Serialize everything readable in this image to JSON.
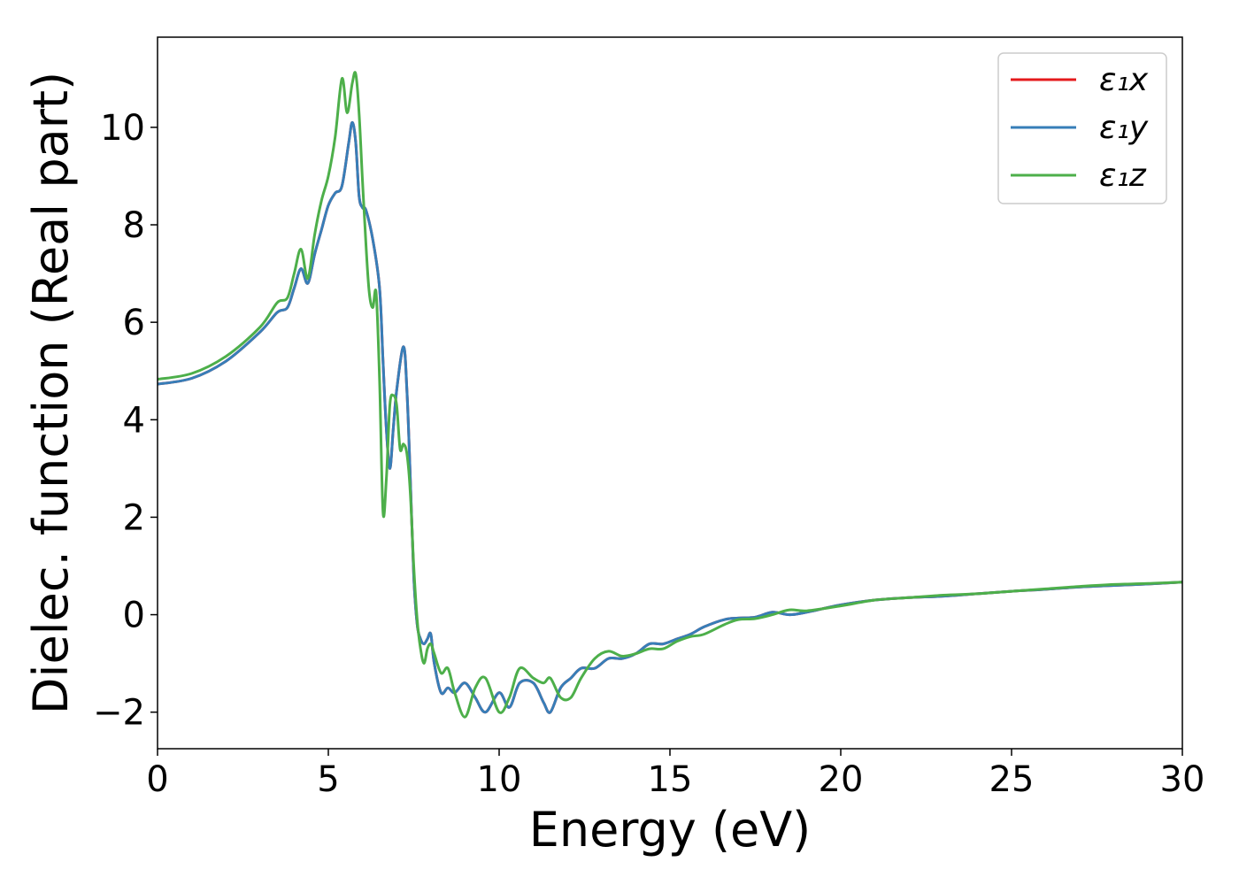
{
  "chart_data": {
    "type": "line",
    "title": "",
    "xlabel": "Energy (eV)",
    "ylabel": "Dielec. function (Real part)",
    "xlim": [
      0,
      30
    ],
    "ylim": [
      -2.75,
      11.85
    ],
    "xticks": [
      0,
      5,
      10,
      15,
      20,
      25,
      30
    ],
    "yticks": [
      -2,
      0,
      2,
      4,
      6,
      8,
      10
    ],
    "xtick_labels": [
      "0",
      "5",
      "10",
      "15",
      "20",
      "25",
      "30"
    ],
    "ytick_labels": [
      "−2",
      "0",
      "2",
      "4",
      "6",
      "8",
      "10"
    ],
    "grid": false,
    "legend_position": "top-right",
    "series": [
      {
        "name": "ε₁x",
        "color": "#e41a1c",
        "x": [
          0,
          1,
          2,
          3,
          3.5,
          3.8,
          4.0,
          4.2,
          4.4,
          4.6,
          4.8,
          5.0,
          5.2,
          5.4,
          5.6,
          5.7,
          5.8,
          5.9,
          6.0,
          6.1,
          6.3,
          6.5,
          6.6,
          6.7,
          6.8,
          6.9,
          7.0,
          7.2,
          7.3,
          7.4,
          7.5,
          7.6,
          7.7,
          7.8,
          7.9,
          8.0,
          8.1,
          8.3,
          8.5,
          8.7,
          9.0,
          9.3,
          9.6,
          10.0,
          10.3,
          10.6,
          11.0,
          11.3,
          11.5,
          11.8,
          12.1,
          12.4,
          12.8,
          13.2,
          13.6,
          14.0,
          14.4,
          14.8,
          15.2,
          15.6,
          16.0,
          16.6,
          17.0,
          17.5,
          18.0,
          18.5,
          19.0,
          20,
          21,
          22,
          23,
          24,
          25,
          26,
          27,
          28,
          29,
          30
        ],
        "values": [
          4.73,
          4.85,
          5.2,
          5.8,
          6.2,
          6.3,
          6.7,
          7.1,
          6.8,
          7.4,
          7.9,
          8.4,
          8.65,
          8.8,
          9.7,
          10.1,
          9.7,
          8.6,
          8.35,
          8.3,
          7.7,
          6.7,
          5.2,
          3.8,
          3.0,
          3.8,
          4.6,
          5.5,
          4.6,
          2.8,
          0.8,
          -0.2,
          -0.5,
          -0.6,
          -0.5,
          -0.4,
          -1.0,
          -1.6,
          -1.5,
          -1.6,
          -1.4,
          -1.7,
          -2.0,
          -1.6,
          -1.9,
          -1.4,
          -1.4,
          -1.8,
          -2.0,
          -1.5,
          -1.3,
          -1.1,
          -1.1,
          -0.9,
          -0.9,
          -0.8,
          -0.6,
          -0.6,
          -0.5,
          -0.4,
          -0.25,
          -0.1,
          -0.07,
          -0.05,
          0.05,
          0.0,
          0.05,
          0.2,
          0.3,
          0.35,
          0.38,
          0.43,
          0.48,
          0.52,
          0.57,
          0.6,
          0.63,
          0.67
        ]
      },
      {
        "name": "ε₁y",
        "color": "#377eb8",
        "x": [
          0,
          1,
          2,
          3,
          3.5,
          3.8,
          4.0,
          4.2,
          4.4,
          4.6,
          4.8,
          5.0,
          5.2,
          5.4,
          5.6,
          5.7,
          5.8,
          5.9,
          6.0,
          6.1,
          6.3,
          6.5,
          6.6,
          6.7,
          6.8,
          6.9,
          7.0,
          7.2,
          7.3,
          7.4,
          7.5,
          7.6,
          7.7,
          7.8,
          7.9,
          8.0,
          8.1,
          8.3,
          8.5,
          8.7,
          9.0,
          9.3,
          9.6,
          10.0,
          10.3,
          10.6,
          11.0,
          11.3,
          11.5,
          11.8,
          12.1,
          12.4,
          12.8,
          13.2,
          13.6,
          14.0,
          14.4,
          14.8,
          15.2,
          15.6,
          16.0,
          16.6,
          17.0,
          17.5,
          18.0,
          18.5,
          19.0,
          20,
          21,
          22,
          23,
          24,
          25,
          26,
          27,
          28,
          29,
          30
        ],
        "values": [
          4.73,
          4.85,
          5.2,
          5.8,
          6.2,
          6.3,
          6.7,
          7.1,
          6.8,
          7.4,
          7.9,
          8.4,
          8.65,
          8.8,
          9.7,
          10.1,
          9.7,
          8.6,
          8.35,
          8.3,
          7.7,
          6.7,
          5.2,
          3.8,
          3.0,
          3.8,
          4.6,
          5.5,
          4.6,
          2.8,
          0.8,
          -0.2,
          -0.5,
          -0.6,
          -0.5,
          -0.4,
          -1.0,
          -1.6,
          -1.5,
          -1.6,
          -1.4,
          -1.7,
          -2.0,
          -1.6,
          -1.9,
          -1.4,
          -1.4,
          -1.8,
          -2.0,
          -1.5,
          -1.3,
          -1.1,
          -1.1,
          -0.9,
          -0.9,
          -0.8,
          -0.6,
          -0.6,
          -0.5,
          -0.4,
          -0.25,
          -0.1,
          -0.07,
          -0.05,
          0.05,
          0.0,
          0.05,
          0.2,
          0.3,
          0.35,
          0.38,
          0.43,
          0.48,
          0.52,
          0.57,
          0.6,
          0.63,
          0.67
        ]
      },
      {
        "name": "ε₁z",
        "color": "#4daf4a",
        "x": [
          0,
          1,
          2,
          3,
          3.5,
          3.8,
          4.0,
          4.2,
          4.4,
          4.6,
          4.8,
          5.0,
          5.2,
          5.4,
          5.55,
          5.7,
          5.8,
          5.9,
          6.0,
          6.1,
          6.2,
          6.3,
          6.4,
          6.5,
          6.6,
          6.7,
          6.8,
          6.9,
          7.0,
          7.1,
          7.2,
          7.3,
          7.4,
          7.5,
          7.6,
          7.7,
          7.8,
          7.9,
          8.0,
          8.1,
          8.3,
          8.5,
          8.7,
          9.0,
          9.3,
          9.6,
          10.0,
          10.3,
          10.6,
          11.0,
          11.3,
          11.5,
          11.8,
          12.1,
          12.4,
          12.8,
          13.2,
          13.6,
          14.0,
          14.4,
          14.8,
          15.2,
          15.6,
          16.0,
          16.6,
          17.0,
          17.5,
          18.0,
          18.5,
          19.0,
          20,
          21,
          22,
          23,
          24,
          25,
          26,
          27,
          28,
          29,
          30
        ],
        "values": [
          4.83,
          4.95,
          5.3,
          5.9,
          6.4,
          6.5,
          7.0,
          7.5,
          6.9,
          7.8,
          8.5,
          9.0,
          9.8,
          11.0,
          10.3,
          10.9,
          11.1,
          10.3,
          8.9,
          7.6,
          6.6,
          6.3,
          6.6,
          4.8,
          2.1,
          2.8,
          4.3,
          4.5,
          4.3,
          3.4,
          3.5,
          3.3,
          2.5,
          1.0,
          -0.1,
          -0.7,
          -1.0,
          -0.7,
          -0.6,
          -0.8,
          -1.2,
          -1.1,
          -1.6,
          -2.1,
          -1.5,
          -1.3,
          -2.0,
          -1.7,
          -1.1,
          -1.3,
          -1.4,
          -1.3,
          -1.7,
          -1.7,
          -1.3,
          -0.9,
          -0.75,
          -0.85,
          -0.8,
          -0.7,
          -0.7,
          -0.55,
          -0.45,
          -0.4,
          -0.2,
          -0.1,
          -0.08,
          0.0,
          0.1,
          0.08,
          0.18,
          0.3,
          0.35,
          0.4,
          0.43,
          0.48,
          0.53,
          0.58,
          0.62,
          0.64,
          0.67
        ]
      }
    ]
  }
}
